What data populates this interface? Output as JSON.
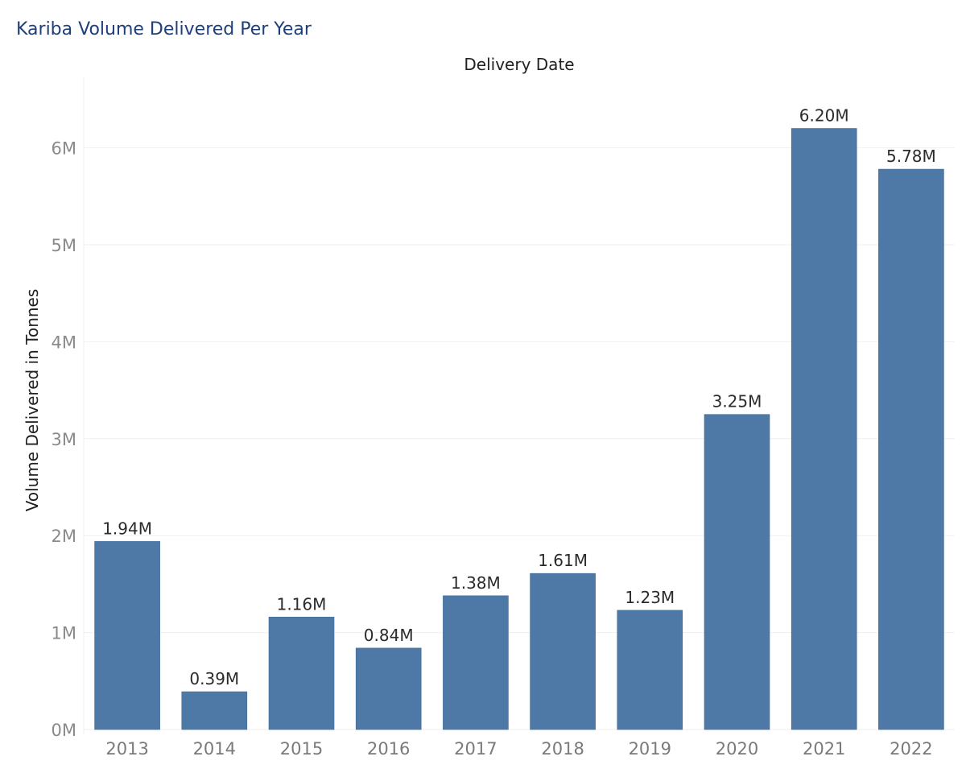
{
  "title": "Kariba Volume Delivered Per Year",
  "chart_data": {
    "type": "bar",
    "title": "Kariba Volume Delivered Per Year",
    "top_axis_title": "Delivery Date",
    "xlabel": "",
    "ylabel": "Volume Delivered in Tonnes",
    "categories": [
      "2013",
      "2014",
      "2015",
      "2016",
      "2017",
      "2018",
      "2019",
      "2020",
      "2021",
      "2022"
    ],
    "values": [
      1.94,
      0.39,
      1.16,
      0.84,
      1.38,
      1.61,
      1.23,
      3.25,
      6.2,
      5.78
    ],
    "value_unit": "M",
    "data_labels": [
      "1.94M",
      "0.39M",
      "1.16M",
      "0.84M",
      "1.38M",
      "1.61M",
      "1.23M",
      "3.25M",
      "6.20M",
      "5.78M"
    ],
    "yticks": [
      0,
      1,
      2,
      3,
      4,
      5,
      6
    ],
    "ytick_labels": [
      "0M",
      "1M",
      "2M",
      "3M",
      "4M",
      "5M",
      "6M"
    ],
    "ylim": [
      0,
      6.8
    ],
    "grid": true,
    "legend": "none",
    "bar_color": "#4e79a7"
  }
}
